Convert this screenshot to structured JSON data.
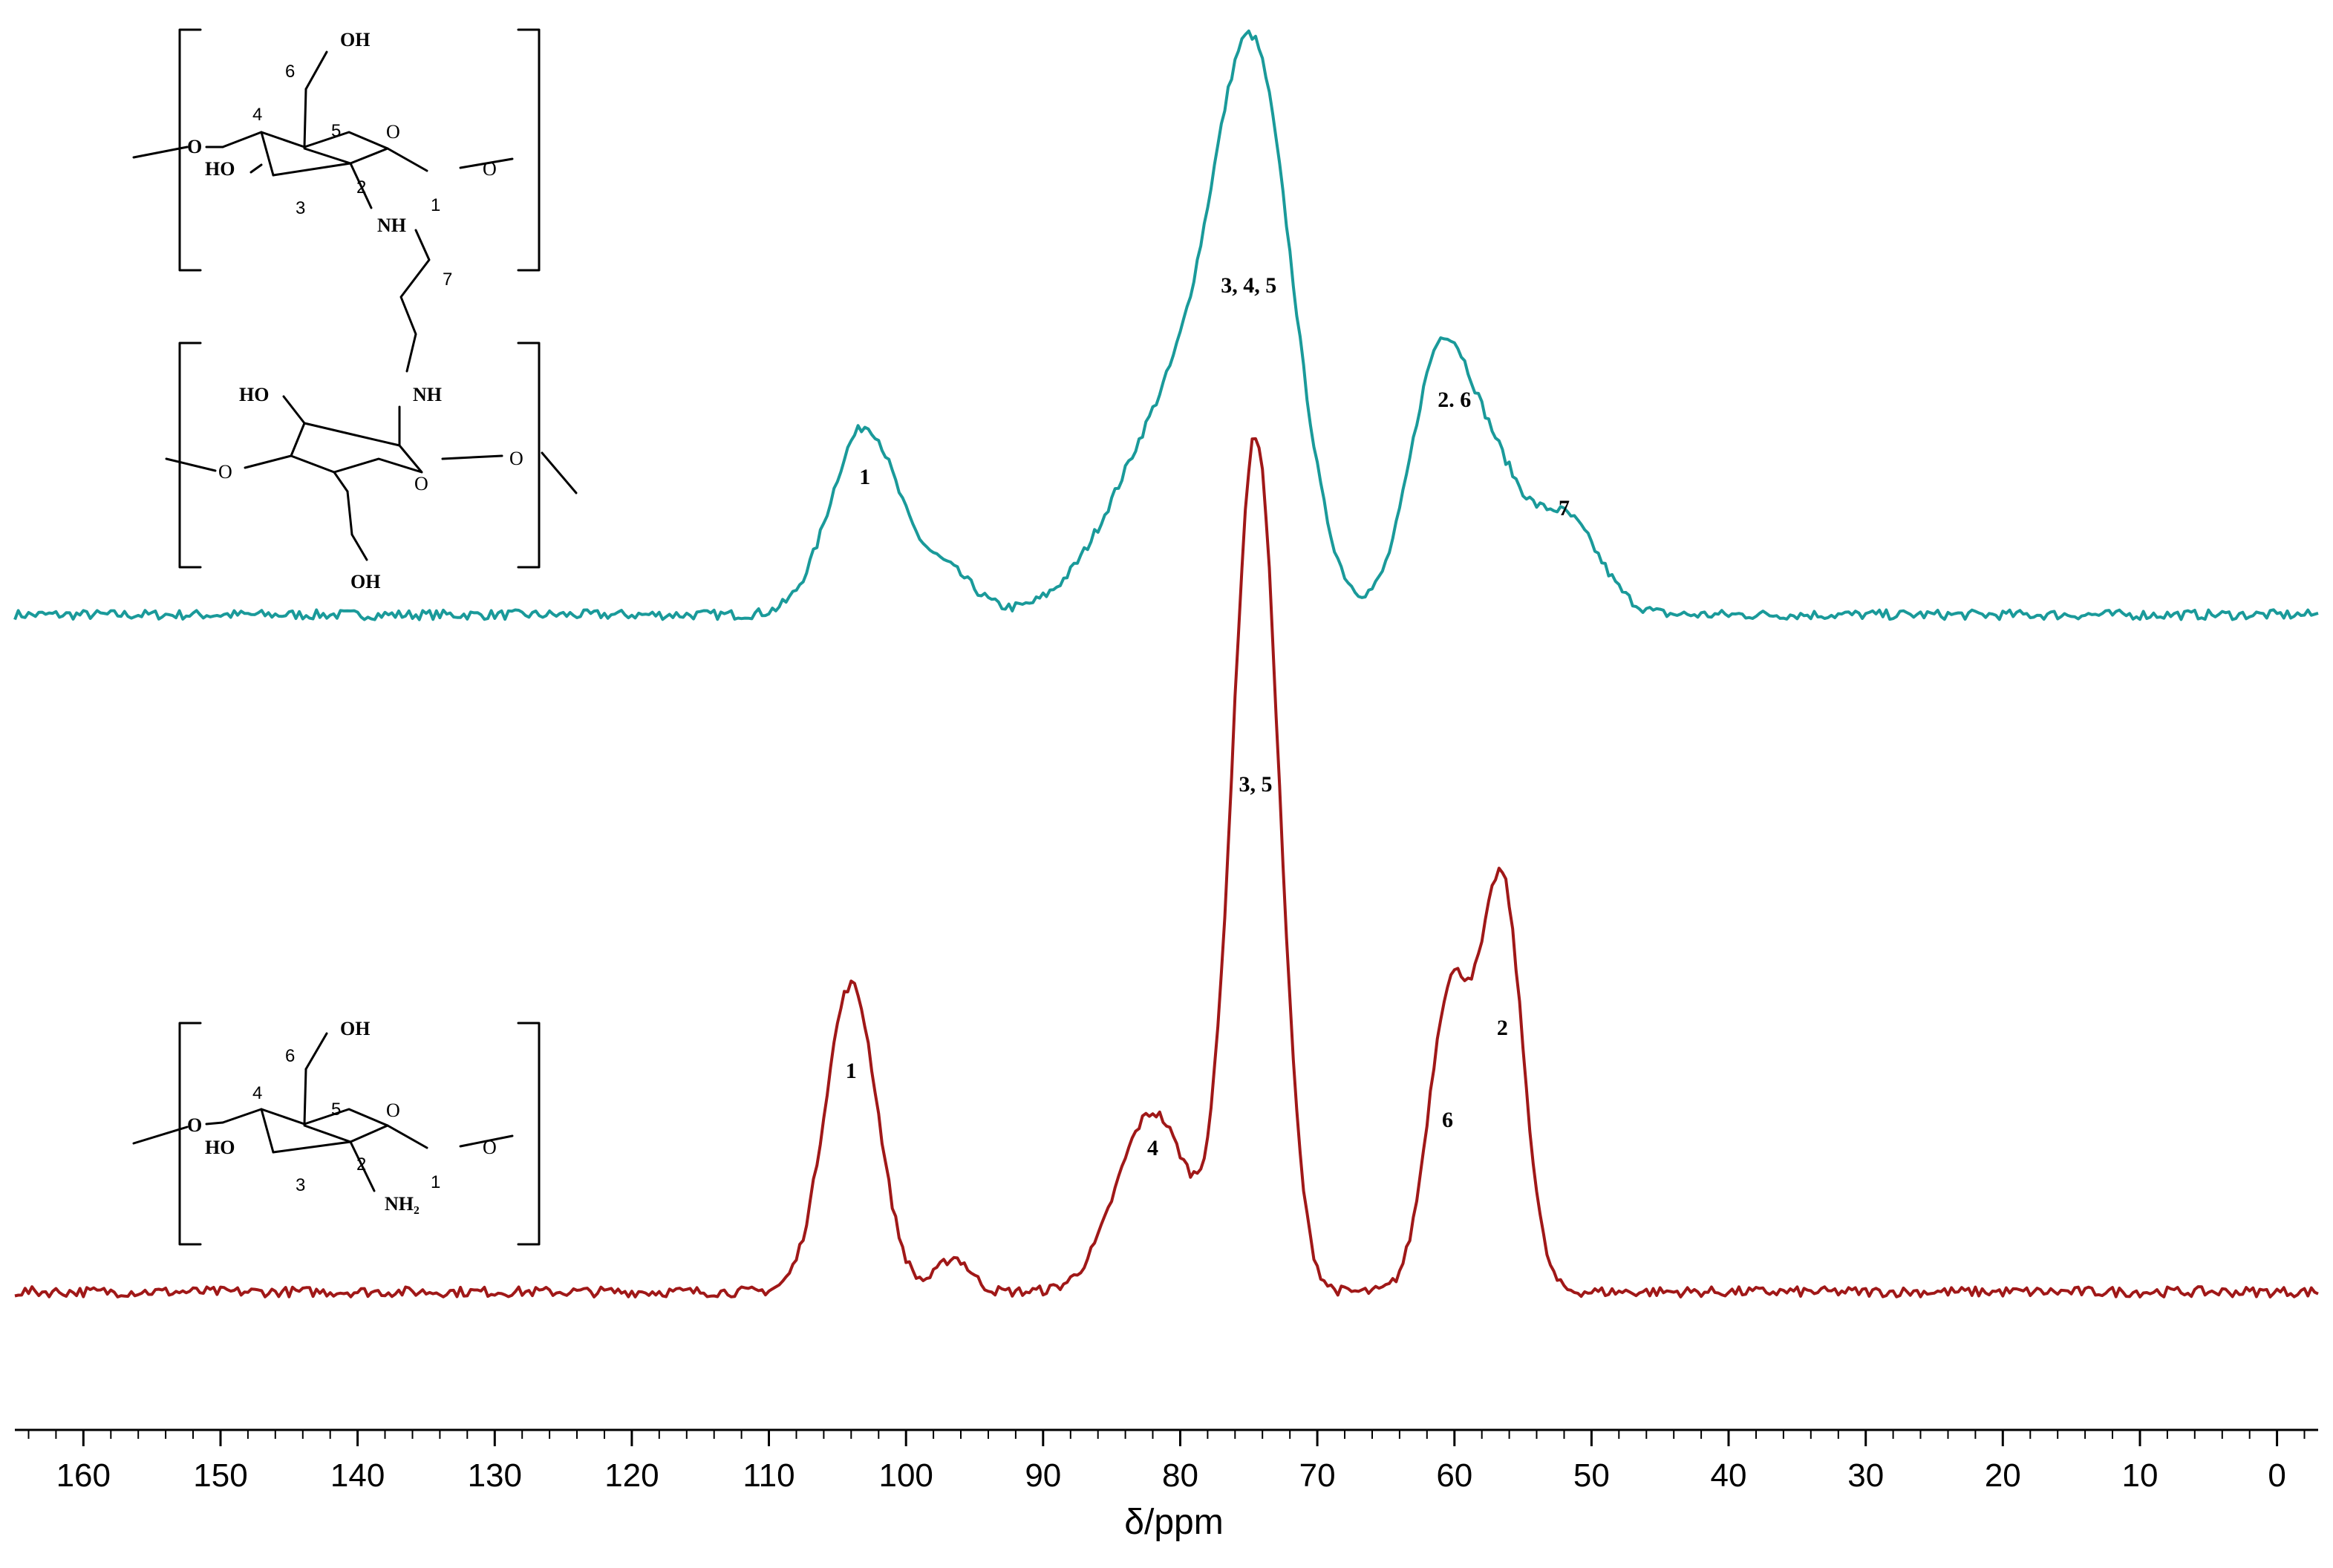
{
  "chart_data": {
    "type": "line",
    "xlabel": "δ/ppm",
    "xlim": [
      165,
      -3
    ],
    "x_reversed": true,
    "xticks": [
      160,
      150,
      140,
      130,
      120,
      110,
      100,
      90,
      80,
      70,
      60,
      50,
      40,
      30,
      20,
      10,
      0
    ],
    "series": [
      {
        "key": "top",
        "color": "#1a9a9a",
        "peaks": [
          {
            "center": 103,
            "height": 0.23,
            "width": 2.5
          },
          {
            "center": 97,
            "height": 0.05,
            "width": 2.0
          },
          {
            "center": 80,
            "height": 0.26,
            "width": 4.5
          },
          {
            "center": 74.5,
            "height": 0.58,
            "width": 2.8
          },
          {
            "center": 61,
            "height": 0.32,
            "width": 2.2
          },
          {
            "center": 57,
            "height": 0.14,
            "width": 2.0
          },
          {
            "center": 52,
            "height": 0.12,
            "width": 2.5
          }
        ],
        "annotations": [
          {
            "text": "1",
            "x": 103
          },
          {
            "text": "3, 4, 5",
            "x": 75
          },
          {
            "text": "2. 6",
            "x": 60
          },
          {
            "text": "7",
            "x": 52
          }
        ]
      },
      {
        "key": "bottom",
        "color": "#a01818",
        "peaks": [
          {
            "center": 104,
            "height": 0.36,
            "width": 1.9
          },
          {
            "center": 96.5,
            "height": 0.04,
            "width": 1.2
          },
          {
            "center": 82,
            "height": 0.21,
            "width": 2.6
          },
          {
            "center": 74.5,
            "height": 1.0,
            "width": 1.7
          },
          {
            "center": 60.3,
            "height": 0.35,
            "width": 1.6
          },
          {
            "center": 56.5,
            "height": 0.47,
            "width": 1.5
          }
        ],
        "annotations": [
          {
            "text": "1",
            "x": 104
          },
          {
            "text": "4",
            "x": 82
          },
          {
            "text": "3, 5",
            "x": 74.5
          },
          {
            "text": "6",
            "x": 60.5
          },
          {
            "text": "2",
            "x": 56.5
          }
        ]
      }
    ]
  },
  "structures": {
    "top": {
      "labels": {
        "oh": "OH",
        "o": "O",
        "ho": "HO",
        "nh": "NH",
        "c1": "1",
        "c2": "2",
        "c3": "3",
        "c4": "4",
        "c5": "5",
        "c6": "6",
        "c7": "7"
      }
    },
    "bottom": {
      "labels": {
        "oh": "OH",
        "o": "O",
        "ho": "HO",
        "nh2": "NH₂",
        "c1": "1",
        "c2": "2",
        "c3": "3",
        "c4": "4",
        "c5": "5",
        "c6": "6"
      }
    }
  }
}
